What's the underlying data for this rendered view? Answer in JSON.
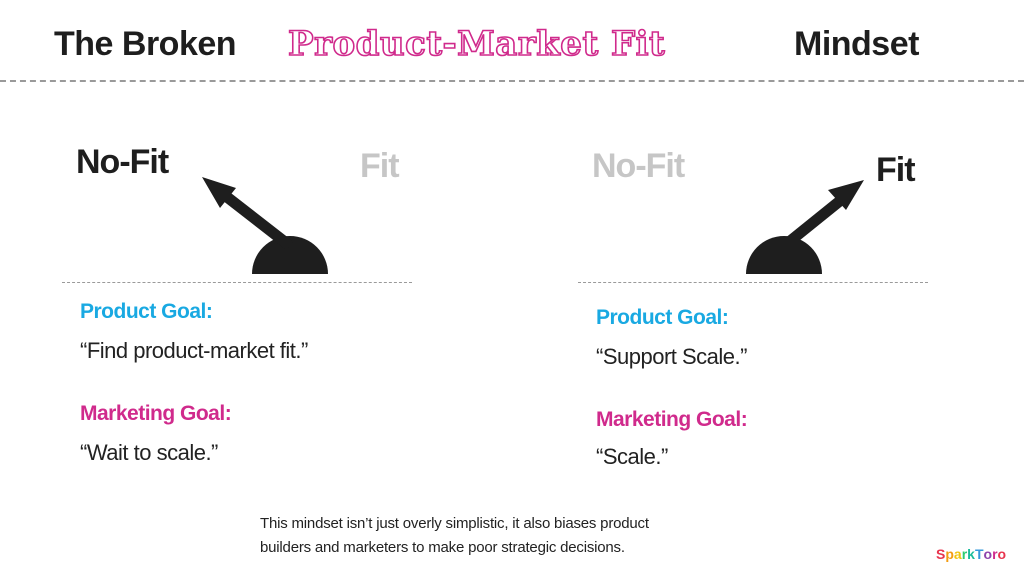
{
  "title": {
    "prefix": "The Broken",
    "highlight": "Product-Market Fit",
    "suffix": "Mindset"
  },
  "panels": [
    {
      "label_left": "No-Fit",
      "label_right": "Fit",
      "active_side": "left",
      "product_goal_title": "Product Goal:",
      "product_goal_text": "“Find product-market fit.”",
      "marketing_goal_title": "Marketing Goal:",
      "marketing_goal_text": "“Wait to scale.”"
    },
    {
      "label_left": "No-Fit",
      "label_right": "Fit",
      "active_side": "right",
      "product_goal_title": "Product Goal:",
      "product_goal_text": "“Support Scale.”",
      "marketing_goal_title": "Marketing Goal:",
      "marketing_goal_text": "“Scale.”"
    }
  ],
  "footer": {
    "line1": "This mindset isn’t just overly simplistic, it also biases product",
    "line2": "builders and marketers to make poor strategic decisions."
  },
  "brand": {
    "name": "SparkToro"
  },
  "colors": {
    "product_goal": "#19a9e2",
    "marketing_goal": "#d02a8c",
    "title_highlight": "#d02a8c",
    "active_label": "#1e1e1e",
    "inactive_label": "#c6c6c6",
    "gauge": "#1e1e1e"
  }
}
